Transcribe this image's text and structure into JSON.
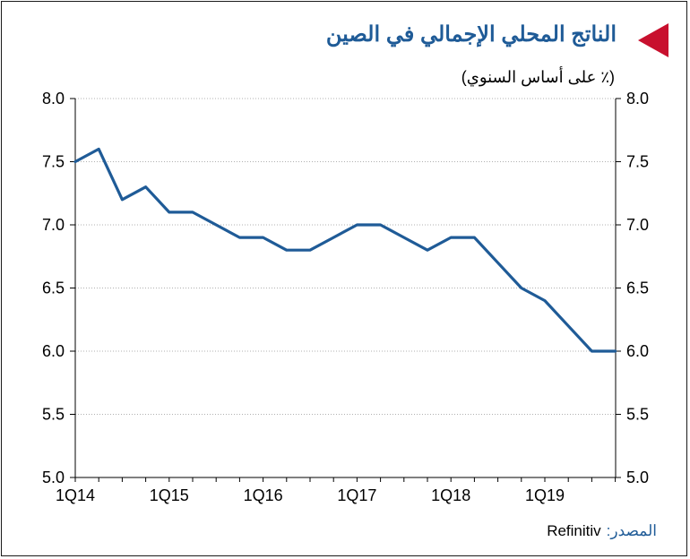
{
  "chart_data": {
    "type": "line",
    "title": "الناتج المحلي الإجمالي في الصين",
    "subtitle": "(٪ على أساس السنوي)",
    "source_label": "المصدر:",
    "source_value": "Refinitiv",
    "ylim": [
      5.0,
      8.0
    ],
    "yticks": [
      "8.0",
      "7.5",
      "7.0",
      "6.5",
      "6.0",
      "5.5",
      "5.0"
    ],
    "ytick_values": [
      8.0,
      7.5,
      7.0,
      6.5,
      6.0,
      5.5,
      5.0
    ],
    "xtick_labels": [
      "1Q14",
      "1Q15",
      "1Q16",
      "1Q17",
      "1Q18",
      "1Q19"
    ],
    "xtick_indices": [
      0,
      4,
      8,
      12,
      16,
      20
    ],
    "categories": [
      "1Q14",
      "2Q14",
      "3Q14",
      "4Q14",
      "1Q15",
      "2Q15",
      "3Q15",
      "4Q15",
      "1Q16",
      "2Q16",
      "3Q16",
      "4Q16",
      "1Q17",
      "2Q17",
      "3Q17",
      "4Q17",
      "1Q18",
      "2Q18",
      "3Q18",
      "4Q18",
      "1Q19",
      "2Q19",
      "3Q19",
      "4Q19"
    ],
    "series": [
      {
        "values": [
          7.5,
          7.6,
          7.2,
          7.3,
          7.1,
          7.1,
          7.0,
          6.9,
          6.9,
          6.8,
          6.8,
          6.9,
          7.0,
          7.0,
          6.9,
          6.8,
          6.9,
          6.9,
          6.7,
          6.5,
          6.4,
          6.2,
          6.0,
          6.0
        ]
      }
    ],
    "grid": true,
    "colors": {
      "line": "#1f5b97",
      "title": "#1f5b97",
      "marker": "#c8102e",
      "grid": "#b0b0b0"
    }
  }
}
